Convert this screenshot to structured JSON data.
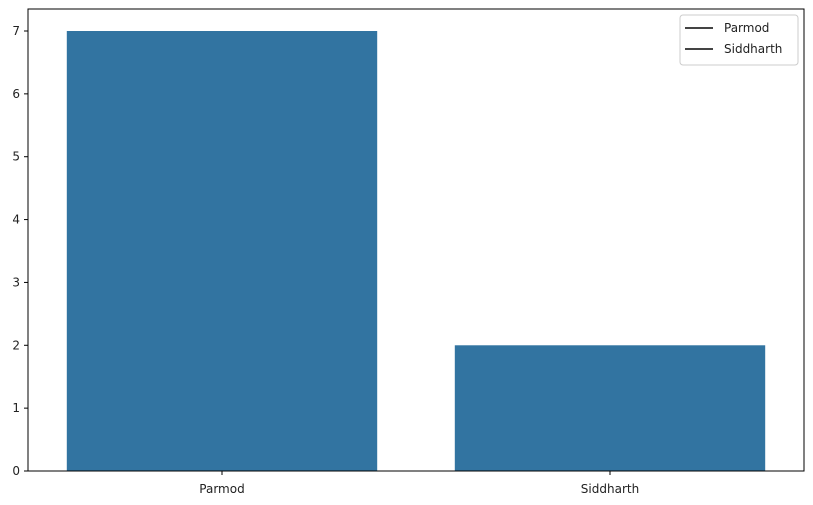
{
  "chart_data": {
    "type": "bar",
    "title": "",
    "xlabel": "",
    "ylabel": "",
    "categories": [
      "Parmod",
      "Siddharth"
    ],
    "values": [
      7,
      2
    ],
    "ylim": [
      0,
      7.35
    ],
    "yticks": [
      0,
      1,
      2,
      3,
      4,
      5,
      6,
      7
    ],
    "bar_color": "#3274a1",
    "grid": false,
    "legend": {
      "placement": "top-right",
      "entries": [
        "Parmod",
        "Siddharth"
      ],
      "line_color": "#444444"
    }
  }
}
